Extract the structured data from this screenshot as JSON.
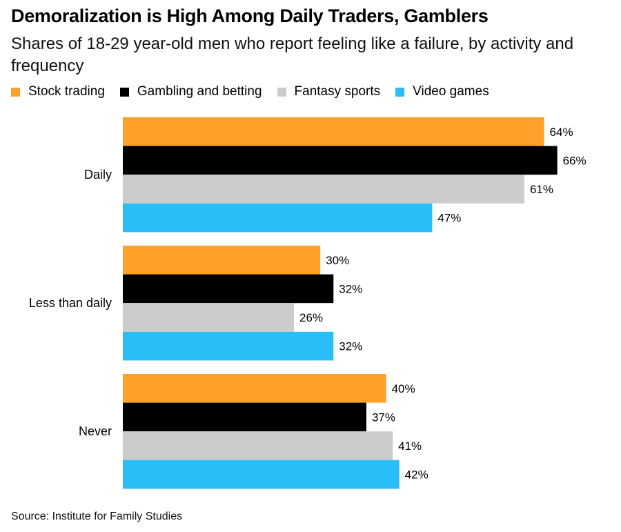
{
  "title": "Demoralization is High Among Daily Traders, Gamblers",
  "subtitle": "Shares of 18-29 year-old men who report feeling like a failure, by activity and frequency",
  "source": "Source: Institute for Family Studies",
  "chart_data": {
    "type": "bar",
    "orientation": "horizontal",
    "categories": [
      "Daily",
      "Less than daily",
      "Never"
    ],
    "series": [
      {
        "name": "Stock trading",
        "color": "#ffa028",
        "values": [
          64,
          30,
          40
        ]
      },
      {
        "name": "Gambling and betting",
        "color": "#000000",
        "values": [
          66,
          32,
          37
        ]
      },
      {
        "name": "Fantasy sports",
        "color": "#cccccc",
        "values": [
          61,
          26,
          41
        ]
      },
      {
        "name": "Video games",
        "color": "#29bef8",
        "values": [
          47,
          32,
          42
        ]
      }
    ],
    "value_suffix": "%",
    "xlim": [
      0,
      100
    ],
    "grid": false,
    "legend_position": "top"
  }
}
